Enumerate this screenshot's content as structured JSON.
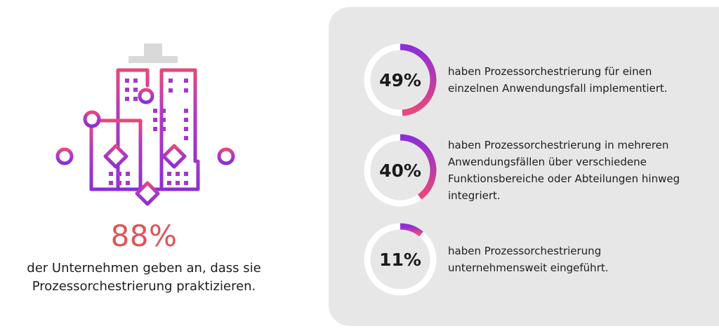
{
  "main_stat": {
    "value": "88%",
    "description": "der Unternehmen geben an, dass sie Prozessorchestrierung praktizieren."
  },
  "chart_data": {
    "type": "donut",
    "items": [
      {
        "label": "49%",
        "value": 49,
        "description": "haben Prozessorchestrierung für einen einzelnen Anwendungsfall implementiert."
      },
      {
        "label": "40%",
        "value": 40,
        "description": "haben Prozessorchestrierung in mehreren Anwendungsfällen über verschiedene Funktionsbereiche oder Abteilungen hinweg integriert."
      },
      {
        "label": "11%",
        "value": 11,
        "description": "haben Prozessorchestrierung unternehmensweit eingeführt."
      }
    ]
  },
  "colors": {
    "accent": "#e0535a",
    "gradient_start": "#8b2fd6",
    "gradient_end": "#e9477a",
    "panel": "#e7e7e8",
    "ring_track": "#ffffff"
  },
  "illustration": {
    "icon": "building-network-icon"
  }
}
